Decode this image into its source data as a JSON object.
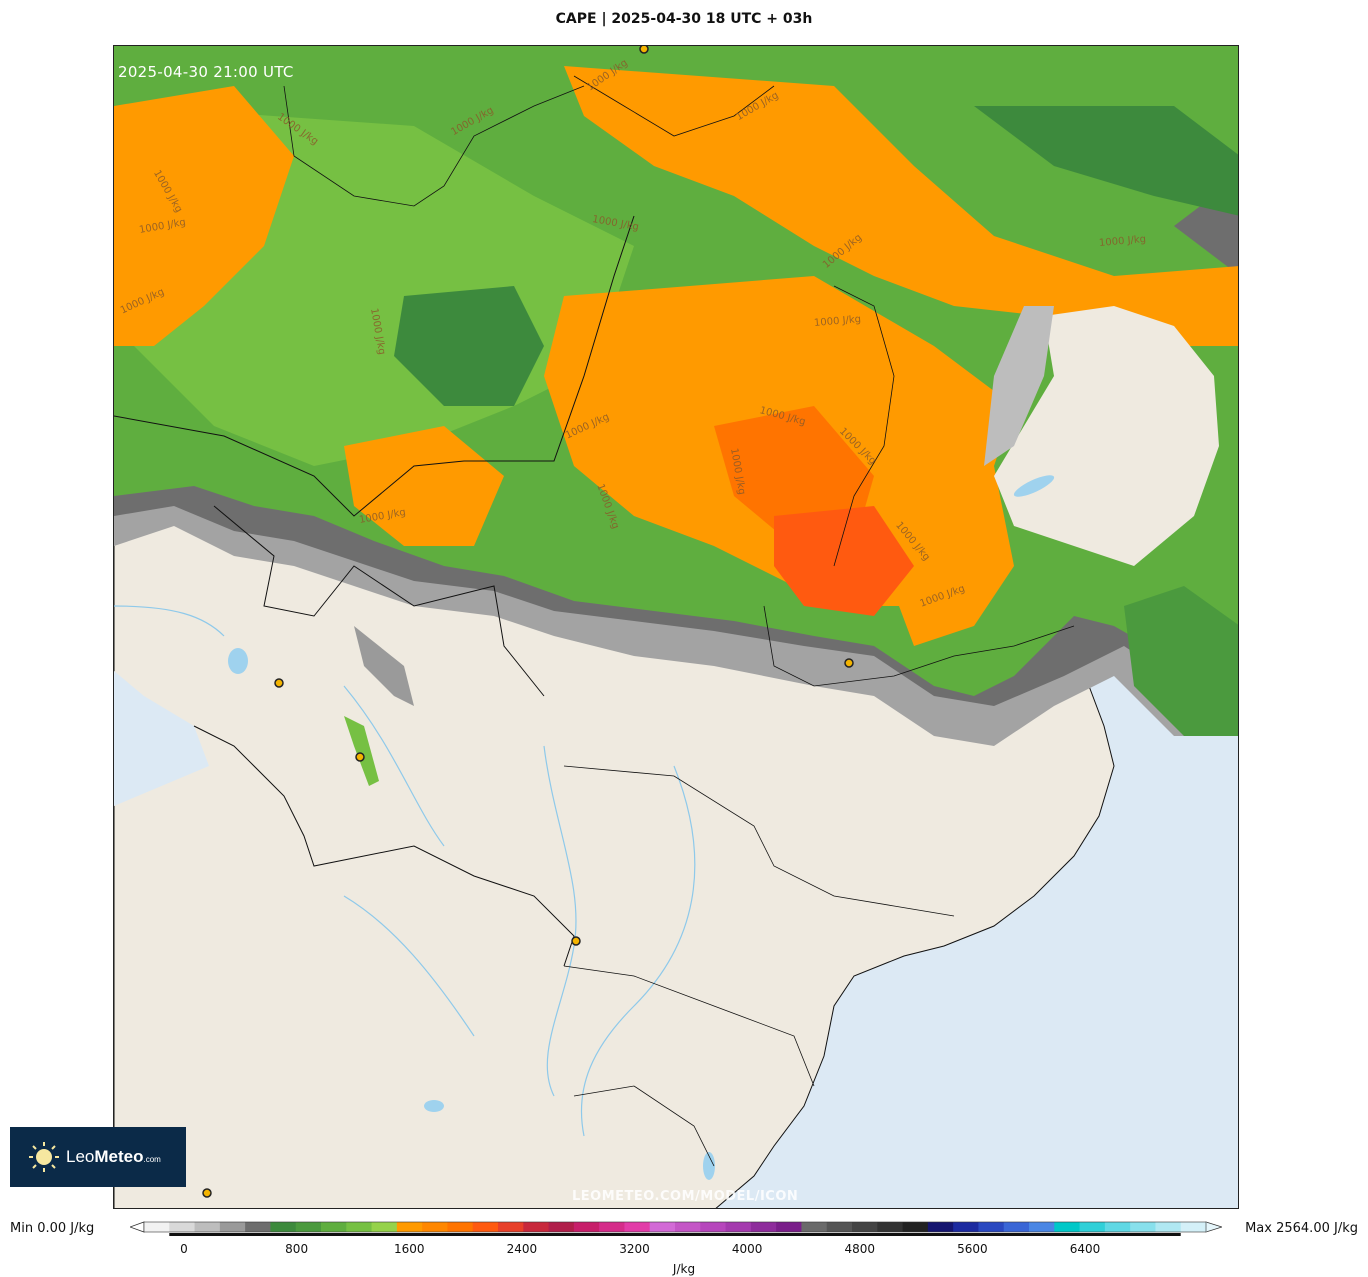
{
  "title": "CAPE | 2025-04-30 18 UTC + 03h",
  "valid_time": "2025-04-30 21:00 UTC",
  "watermark": "LEOMETEO.COM/MODEL/ICON",
  "logo": {
    "leo": "Leo",
    "meteo": "Meteo",
    "com": ".com"
  },
  "contour_label": "1000 J/kg",
  "colorbar": {
    "min_label": "Min 0.00 J/kg",
    "max_label": "Max 2564.00 J/kg",
    "unit": "J/kg",
    "ticks": [
      "0",
      "800",
      "1600",
      "2400",
      "3200",
      "4000",
      "4800",
      "5600",
      "6400"
    ],
    "colors": [
      "#f2f2f2",
      "#d9d9d9",
      "#bdbdbd",
      "#9a9a9a",
      "#6e6e6e",
      "#3d8a3d",
      "#4b9a3e",
      "#5fae3f",
      "#76c043",
      "#95d24a",
      "#ff9a00",
      "#ff8700",
      "#ff7400",
      "#ff5a10",
      "#e8402a",
      "#c8283c",
      "#b01e4a",
      "#c71e6a",
      "#d52c8a",
      "#e23ca8",
      "#d26ad6",
      "#c456c6",
      "#b646bc",
      "#a43aae",
      "#8e2c9c",
      "#7a1e8a",
      "#6a6a6a",
      "#555555",
      "#444444",
      "#333333",
      "#222222",
      "#151570",
      "#1c2aa0",
      "#2a48c0",
      "#3a66d6",
      "#4a86e4",
      "#00c8c8",
      "#30d0d8",
      "#60d8e4",
      "#88e0ec",
      "#b0e8f2",
      "#d4f0f8"
    ]
  },
  "map": {
    "ocean_color": "#dce9f4",
    "land_color": "#efeae0",
    "lakes_color": "#9fd2ee"
  }
}
